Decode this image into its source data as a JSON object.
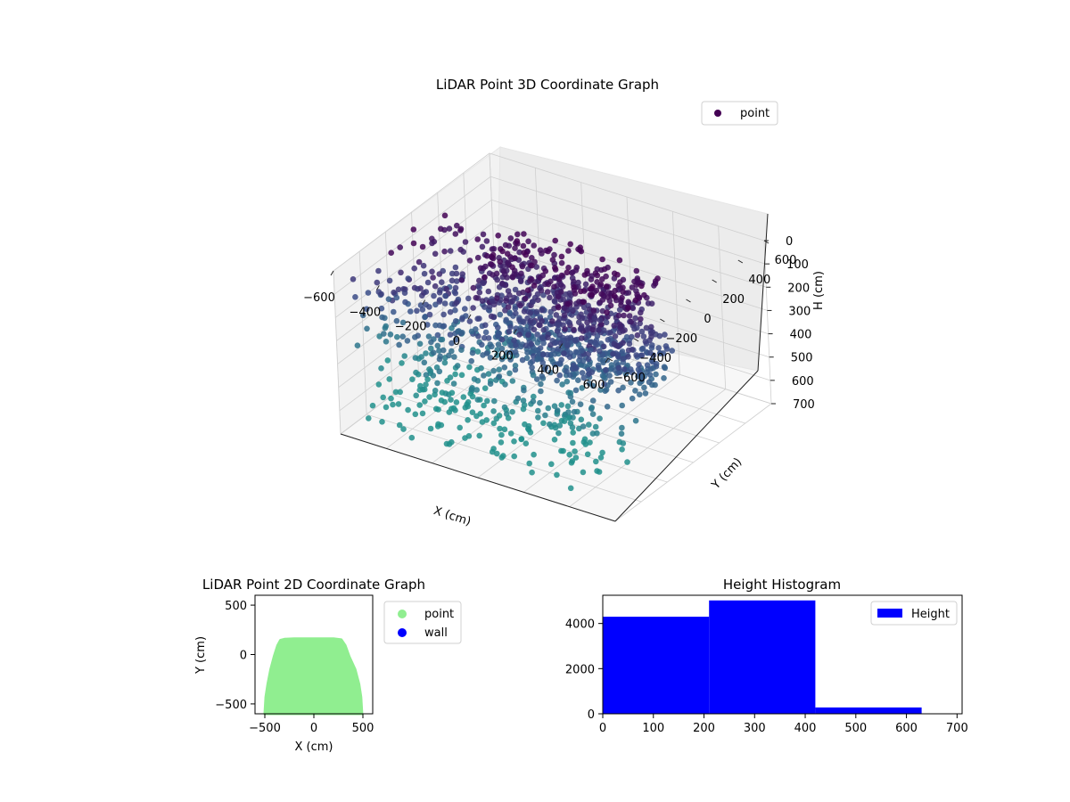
{
  "chart_data": [
    {
      "id": "lidar3d",
      "type": "scatter",
      "title": "LiDAR Point 3D Coordinate Graph",
      "xlabel": "X (cm)",
      "ylabel": "Y (cm)",
      "zlabel": "H (cm)",
      "xlim": [
        -600,
        600
      ],
      "ylim": [
        -600,
        600
      ],
      "zlim": [
        0,
        700
      ],
      "z_inverted": true,
      "x_ticks": [
        "−600",
        "−400",
        "−200",
        "0",
        "200",
        "400",
        "600"
      ],
      "y_ticks": [
        "−600",
        "−400",
        "−200",
        "0",
        "200",
        "400",
        "600"
      ],
      "z_ticks": [
        "0",
        "100",
        "200",
        "300",
        "400",
        "500",
        "600",
        "700"
      ],
      "legend": {
        "position": "top-right",
        "entries": [
          {
            "name": "point",
            "color": "#440154"
          }
        ]
      },
      "series": [
        {
          "name": "point",
          "colormap": "viridis",
          "color_by": "height",
          "x_range": [
            -550,
            450
          ],
          "y_range": [
            -550,
            150
          ],
          "z_range": [
            0,
            700
          ]
        }
      ],
      "grid": true
    },
    {
      "id": "lidar2d",
      "type": "scatter",
      "title": "LiDAR Point 2D Coordinate Graph",
      "xlabel": "X (cm)",
      "ylabel": "Y (cm)",
      "xlim": [
        -600,
        600
      ],
      "ylim": [
        -600,
        600
      ],
      "x_ticks": [
        "−500",
        "0",
        "500"
      ],
      "y_ticks": [
        "−500",
        "0",
        "500"
      ],
      "legend": {
        "position": "outside-right",
        "entries": [
          {
            "name": "point",
            "color": "#90ee90"
          },
          {
            "name": "wall",
            "color": "#0000ff"
          }
        ]
      },
      "region_outline": [
        [
          -500,
          -600
        ],
        [
          -490,
          -430
        ],
        [
          -470,
          -300
        ],
        [
          -440,
          -150
        ],
        [
          -405,
          -20
        ],
        [
          -370,
          90
        ],
        [
          -340,
          145
        ],
        [
          -300,
          155
        ],
        [
          -200,
          160
        ],
        [
          0,
          160
        ],
        [
          200,
          160
        ],
        [
          280,
          150
        ],
        [
          320,
          90
        ],
        [
          360,
          -20
        ],
        [
          420,
          -150
        ],
        [
          460,
          -300
        ],
        [
          480,
          -430
        ],
        [
          490,
          -600
        ]
      ],
      "grid": false
    },
    {
      "id": "histogram",
      "type": "bar",
      "title": "Height Histogram",
      "xlim": [
        0,
        710
      ],
      "ylim": [
        0,
        5250
      ],
      "x_ticks": [
        "0",
        "100",
        "200",
        "300",
        "400",
        "500",
        "600",
        "700"
      ],
      "y_ticks": [
        "0",
        "2000",
        "4000"
      ],
      "bins": [
        {
          "x0": 0,
          "x1": 210,
          "value": 4300
        },
        {
          "x0": 210,
          "x1": 420,
          "value": 5020
        },
        {
          "x0": 420,
          "x1": 630,
          "value": 280
        }
      ],
      "bar_color": "#0000ff",
      "legend": {
        "position": "top-right",
        "entries": [
          {
            "name": "Height",
            "color": "#0000ff"
          }
        ]
      },
      "grid": false
    }
  ]
}
